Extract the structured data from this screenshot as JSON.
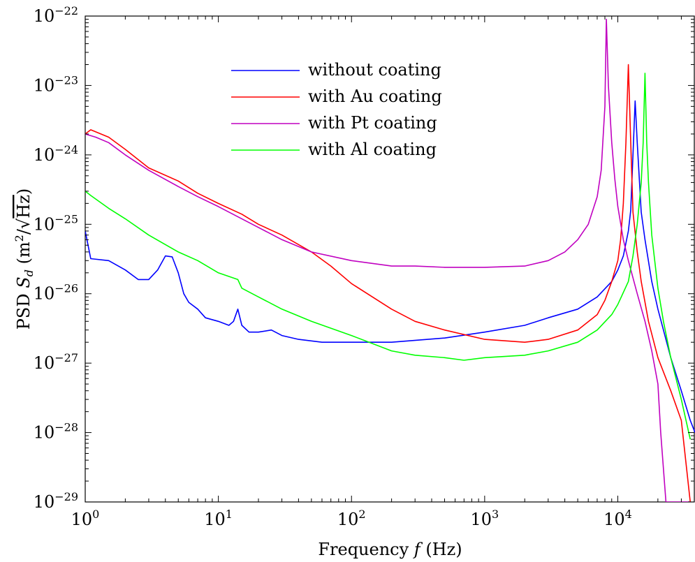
{
  "chart_data": {
    "type": "line",
    "title": "",
    "xlabel": {
      "prefix": "Frequency ",
      "var": "f",
      "suffix": " (Hz)"
    },
    "ylabel": {
      "prefix": "PSD ",
      "var": "S",
      "sub": "d",
      "open": " (m",
      "sup": "2",
      "slash": "/",
      "sqrt": "√",
      "unit": "Hz",
      "close": ")"
    },
    "x_scale": "log",
    "y_scale": "log",
    "xlim": [
      1,
      38000
    ],
    "ylim": [
      1e-29,
      1e-22
    ],
    "x_ticks": [
      {
        "value": 1,
        "base": "10",
        "exp": "0"
      },
      {
        "value": 10,
        "base": "10",
        "exp": "1"
      },
      {
        "value": 100,
        "base": "10",
        "exp": "2"
      },
      {
        "value": 1000,
        "base": "10",
        "exp": "3"
      },
      {
        "value": 10000,
        "base": "10",
        "exp": "4"
      }
    ],
    "y_ticks": [
      {
        "value": 1e-22,
        "base": "10",
        "exp": "−22"
      },
      {
        "value": 1e-23,
        "base": "10",
        "exp": "−23"
      },
      {
        "value": 1e-24,
        "base": "10",
        "exp": "−24"
      },
      {
        "value": 1e-25,
        "base": "10",
        "exp": "−25"
      },
      {
        "value": 1e-26,
        "base": "10",
        "exp": "−26"
      },
      {
        "value": 1e-27,
        "base": "10",
        "exp": "−27"
      },
      {
        "value": 1e-28,
        "base": "10",
        "exp": "−28"
      },
      {
        "value": 1e-29,
        "base": "10",
        "exp": "−29"
      }
    ],
    "legend_position": "upper-center",
    "grid": false,
    "series": [
      {
        "name": "without coating",
        "color": "#0000ff",
        "x": [
          1,
          1.1,
          1.5,
          2,
          2.5,
          3,
          3.5,
          4,
          4.5,
          5,
          5.5,
          6,
          7,
          8,
          10,
          12,
          13,
          14,
          15,
          17,
          20,
          25,
          30,
          40,
          60,
          100,
          200,
          500,
          1000,
          2000,
          3000,
          5000,
          7000,
          9000,
          10000,
          11000,
          12000,
          12500,
          13000,
          13500,
          14000,
          15000,
          16000,
          18000,
          20000,
          22000,
          25000,
          30000,
          35000,
          38000
        ],
        "y": [
          8e-26,
          3.2e-26,
          3e-26,
          2.2e-26,
          1.6e-26,
          1.6e-26,
          2.2e-26,
          3.5e-26,
          3.4e-26,
          2e-26,
          1e-26,
          7.5e-27,
          6e-27,
          4.5e-27,
          4e-27,
          3.5e-27,
          4e-27,
          6e-27,
          3.5e-27,
          2.8e-27,
          2.8e-27,
          3e-27,
          2.5e-27,
          2.2e-27,
          2e-27,
          2e-27,
          2e-27,
          2.3e-27,
          2.8e-27,
          3.5e-27,
          4.5e-27,
          6e-27,
          9e-27,
          1.5e-26,
          2.2e-26,
          3.5e-26,
          8e-26,
          1.6e-25,
          1e-24,
          6e-24,
          1.5e-24,
          1.5e-25,
          6e-26,
          1.5e-26,
          6e-27,
          3e-27,
          1.2e-27,
          4e-28,
          1.5e-28,
          1e-28
        ]
      },
      {
        "name": "with Au coating",
        "color": "#ff0000",
        "x": [
          1,
          1.1,
          1.5,
          2,
          3,
          5,
          7,
          10,
          15,
          20,
          30,
          50,
          70,
          100,
          200,
          300,
          500,
          1000,
          2000,
          3000,
          5000,
          7000,
          8000,
          9000,
          10000,
          10500,
          11000,
          11500,
          12000,
          12500,
          13000,
          14000,
          15000,
          17000,
          20000,
          25000,
          30000,
          35000
        ],
        "y": [
          2e-24,
          2.3e-24,
          1.8e-24,
          1.2e-24,
          6.5e-25,
          4.2e-25,
          2.8e-25,
          2e-25,
          1.4e-25,
          1e-25,
          7e-26,
          4e-26,
          2.5e-26,
          1.4e-26,
          6e-27,
          4e-27,
          3e-27,
          2.2e-27,
          2e-27,
          2.2e-27,
          3e-27,
          5e-27,
          8e-27,
          1.5e-26,
          3e-26,
          6e-26,
          2e-25,
          1.5e-24,
          2e-23,
          1.5e-24,
          1.5e-25,
          4e-26,
          1.5e-26,
          4e-27,
          1.2e-27,
          4e-28,
          1.5e-28,
          1e-29
        ]
      },
      {
        "name": "with Pt coating",
        "color": "#c000c0",
        "x": [
          1,
          1.2,
          1.5,
          2,
          3,
          5,
          7,
          10,
          15,
          20,
          30,
          50,
          100,
          200,
          300,
          500,
          1000,
          2000,
          3000,
          4000,
          5000,
          6000,
          7000,
          7500,
          8000,
          8200,
          8500,
          9000,
          9500,
          10000,
          11000,
          12000,
          14000,
          16000,
          18000,
          20000,
          21000,
          23000,
          25000,
          30000,
          35000
        ],
        "y": [
          2e-24,
          1.8e-24,
          1.5e-24,
          1e-24,
          6e-25,
          3.5e-25,
          2.5e-25,
          1.8e-25,
          1.2e-25,
          9e-26,
          6e-26,
          4e-26,
          3e-26,
          2.5e-26,
          2.5e-26,
          2.4e-26,
          2.4e-26,
          2.5e-26,
          3e-26,
          4e-26,
          6e-26,
          1e-25,
          2.5e-25,
          6e-25,
          5e-24,
          9e-23,
          1e-23,
          1.5e-24,
          4.5e-25,
          1.8e-25,
          6e-26,
          3e-26,
          1e-26,
          4e-27,
          1.5e-27,
          5e-28,
          1e-28,
          1e-29,
          1e-29,
          1e-29,
          1e-29
        ]
      },
      {
        "name": "with Al coating",
        "color": "#00ff00",
        "x": [
          1,
          1.1,
          1.5,
          2,
          3,
          5,
          7,
          10,
          14,
          15,
          20,
          30,
          50,
          100,
          200,
          300,
          500,
          700,
          1000,
          2000,
          3000,
          5000,
          7000,
          9000,
          10000,
          12000,
          13000,
          14000,
          15000,
          15500,
          16000,
          16500,
          17000,
          18000,
          20000,
          22000,
          25000,
          30000,
          35000
        ],
        "y": [
          3e-25,
          2.6e-25,
          1.7e-25,
          1.2e-25,
          7e-26,
          4e-26,
          3e-26,
          2e-26,
          1.6e-26,
          1.2e-26,
          9e-27,
          6e-27,
          4e-27,
          2.5e-27,
          1.5e-27,
          1.3e-27,
          1.2e-27,
          1.1e-27,
          1.2e-27,
          1.3e-27,
          1.5e-27,
          2e-27,
          3e-27,
          5e-27,
          7e-27,
          1.5e-26,
          3.5e-26,
          1e-25,
          4e-25,
          1.5e-24,
          1.5e-23,
          1.5e-24,
          4e-25,
          7e-26,
          1.2e-26,
          4e-27,
          1.2e-27,
          3e-28,
          8e-29
        ]
      }
    ]
  }
}
